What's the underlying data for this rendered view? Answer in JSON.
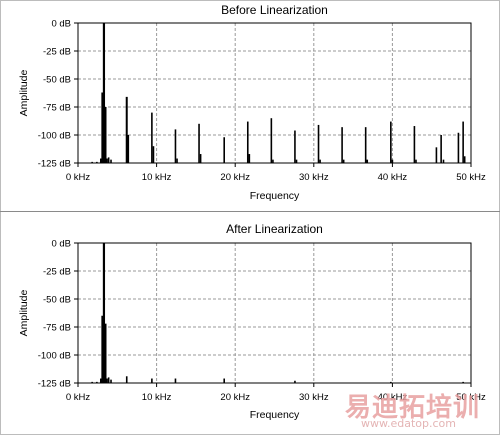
{
  "accent": "#000000",
  "grid_color": "#9a9a9a",
  "watermark": {
    "brand": "易迪拓培训",
    "url": "www.edatop.com"
  },
  "chart_data": [
    {
      "type": "bar",
      "title": "Before Linearization",
      "xlabel": "Frequency",
      "ylabel": "Amplitude",
      "xlim": [
        0,
        50
      ],
      "ylim": [
        -125,
        0
      ],
      "xticks": [
        "0 kHz",
        "10 kHz",
        "20 kHz",
        "30 kHz",
        "40 kHz",
        "50 kHz"
      ],
      "yticks": [
        "0 dB",
        "-25 dB",
        "-50 dB",
        "-75 dB",
        "-100 dB",
        "-125 dB"
      ],
      "grid": true,
      "x": [
        1.8,
        2.4,
        2.9,
        3.1,
        3.3,
        3.5,
        3.7,
        3.9,
        4.2,
        6.2,
        6.4,
        9.4,
        9.6,
        12.4,
        12.6,
        15.4,
        15.6,
        18.6,
        21.6,
        21.8,
        24.6,
        24.8,
        27.6,
        27.8,
        30.6,
        30.8,
        33.6,
        33.8,
        36.6,
        36.8,
        39.8,
        40.0,
        42.8,
        43.0,
        45.6,
        46.2,
        46.5,
        48.4,
        49.0,
        49.2
      ],
      "values": [
        -124,
        -124,
        -121,
        -62,
        0,
        -75,
        -121,
        -120,
        -122,
        -66,
        -100,
        -80,
        -110,
        -95,
        -121,
        -90,
        -117,
        -102,
        -88,
        -117,
        -85,
        -122,
        -96,
        -122,
        -91,
        -122,
        -93,
        -122,
        -93,
        -122,
        -88,
        -122,
        -92,
        -122,
        -111,
        -100,
        -122,
        -98,
        -88,
        -119
      ]
    },
    {
      "type": "bar",
      "title": "After Linearization",
      "xlabel": "Frequency",
      "ylabel": "Amplitude",
      "xlim": [
        0,
        50
      ],
      "ylim": [
        -125,
        0
      ],
      "xticks": [
        "0 kHz",
        "10 kHz",
        "20 kHz",
        "30 kHz",
        "40 kHz",
        "50 kHz"
      ],
      "yticks": [
        "0 dB",
        "-25 dB",
        "-50 dB",
        "-75 dB",
        "-100 dB",
        "-125 dB"
      ],
      "grid": true,
      "x": [
        1.8,
        2.4,
        2.9,
        3.1,
        3.3,
        3.5,
        3.7,
        3.9,
        4.2,
        6.2,
        9.4,
        12.4,
        18.6,
        27.6,
        39.8,
        49.0
      ],
      "values": [
        -124,
        -124,
        -121,
        -65,
        0,
        -72,
        -121,
        -120,
        -122,
        -119,
        -121,
        -121,
        -121,
        -123,
        -124,
        -124
      ]
    }
  ]
}
